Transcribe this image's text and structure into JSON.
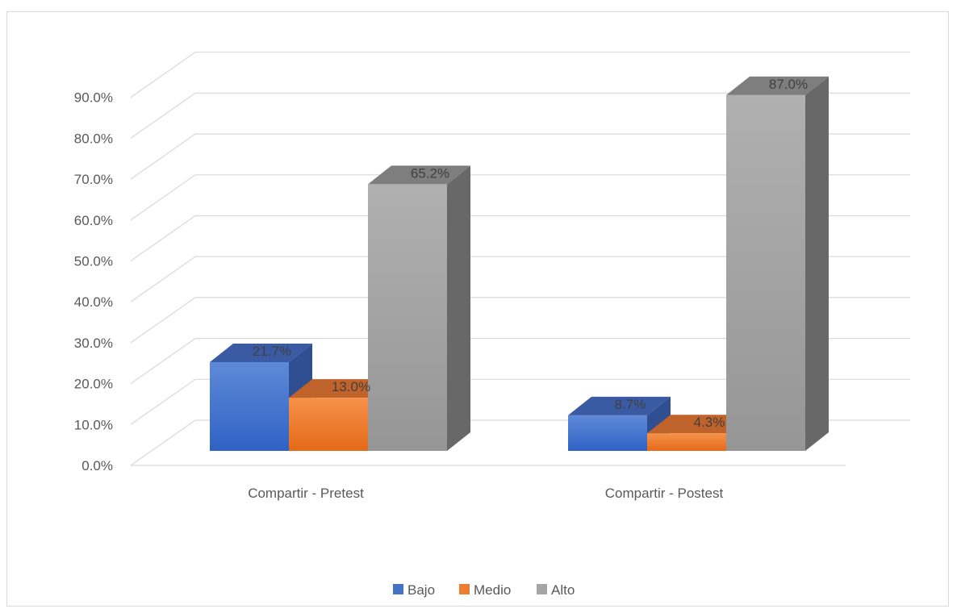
{
  "chart_data": {
    "type": "bar",
    "title": "",
    "xlabel": "",
    "ylabel": "",
    "ylim": [
      0,
      0.9
    ],
    "y_ticks": [
      "0.0%",
      "10.0%",
      "20.0%",
      "30.0%",
      "40.0%",
      "50.0%",
      "60.0%",
      "70.0%",
      "80.0%",
      "90.0%"
    ],
    "grid": true,
    "legend_position": "bottom",
    "categories": [
      "Compartir  - Pretest",
      "Compartir - Postest"
    ],
    "series": [
      {
        "name": "Bajo",
        "values": [
          0.217,
          0.087
        ],
        "labels": [
          "21.7%",
          "8.7%"
        ],
        "color": "#4472c4"
      },
      {
        "name": "Medio",
        "values": [
          0.13,
          0.043
        ],
        "labels": [
          "13.0%",
          "4.3%"
        ],
        "color": "#ed7d31"
      },
      {
        "name": "Alto",
        "values": [
          0.652,
          0.87
        ],
        "labels": [
          "65.2%",
          "87.0%"
        ],
        "color": "#a5a5a5"
      }
    ]
  }
}
